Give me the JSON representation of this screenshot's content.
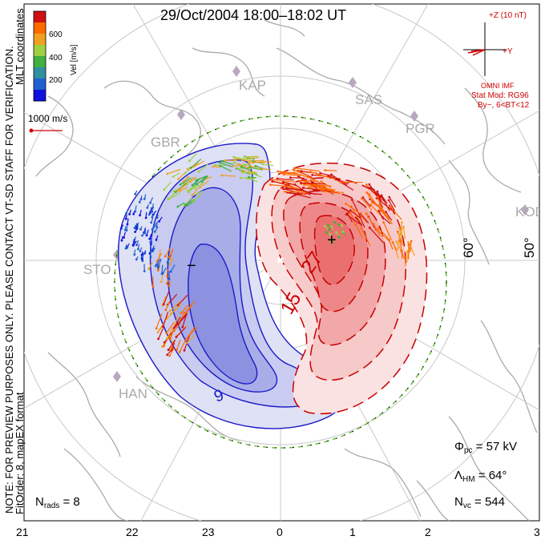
{
  "title": "29/Oct/2004 18:00–18:02 UT",
  "side_notes": {
    "line1": "NOTE: FOR PREVIEW PURPOSES ONLY. PLEASE CONTACT VT-SD STAFF FOR VERIFICATION.",
    "line2": "MLT coordinates",
    "line3": "FitOrder: 8, mapEX format"
  },
  "colorbar": {
    "label": "Vel [m/s]",
    "ticks": [
      "600",
      "400",
      "200"
    ],
    "colors": [
      "#d01010",
      "#ff6a00",
      "#f0a020",
      "#a0d040",
      "#40b040",
      "#3090a0",
      "#2060d0",
      "#1010e0"
    ]
  },
  "vector_scale": {
    "label": "1000 m/s",
    "color": "#d00000"
  },
  "imf": {
    "z_label": "+Z (10 nT)",
    "y_label": "+Y",
    "source": "OMNI IMF",
    "model": "Stat Mod: RG96",
    "condition": "By−, 6<BT<12",
    "color": "#d00000"
  },
  "stations": [
    "KAP",
    "SAS",
    "PGR",
    "GBR",
    "KOD",
    "STO",
    "HAN"
  ],
  "latitude_labels": [
    "60°",
    "50°"
  ],
  "mlt_labels": [
    "21",
    "22",
    "23",
    "0",
    "1",
    "2",
    "3"
  ],
  "contours": {
    "negative_label": "−",
    "negative_value": "9",
    "positive_label": "+",
    "positive_values": [
      "27",
      "15"
    ],
    "negative_color": "#1a1ac8",
    "positive_color": "#c80000"
  },
  "stats": {
    "phi_symbol": "Φ",
    "phi_sub": "pc",
    "phi_value": "= 57 kV",
    "lambda_symbol": "Λ",
    "lambda_sub": "HM",
    "lambda_value": "= 64°",
    "nvc_symbol": "N",
    "nvc_sub": "vc",
    "nvc_value": "= 544",
    "nrads_symbol": "N",
    "nrads_sub": "rads",
    "nrads_value": "= 8"
  }
}
